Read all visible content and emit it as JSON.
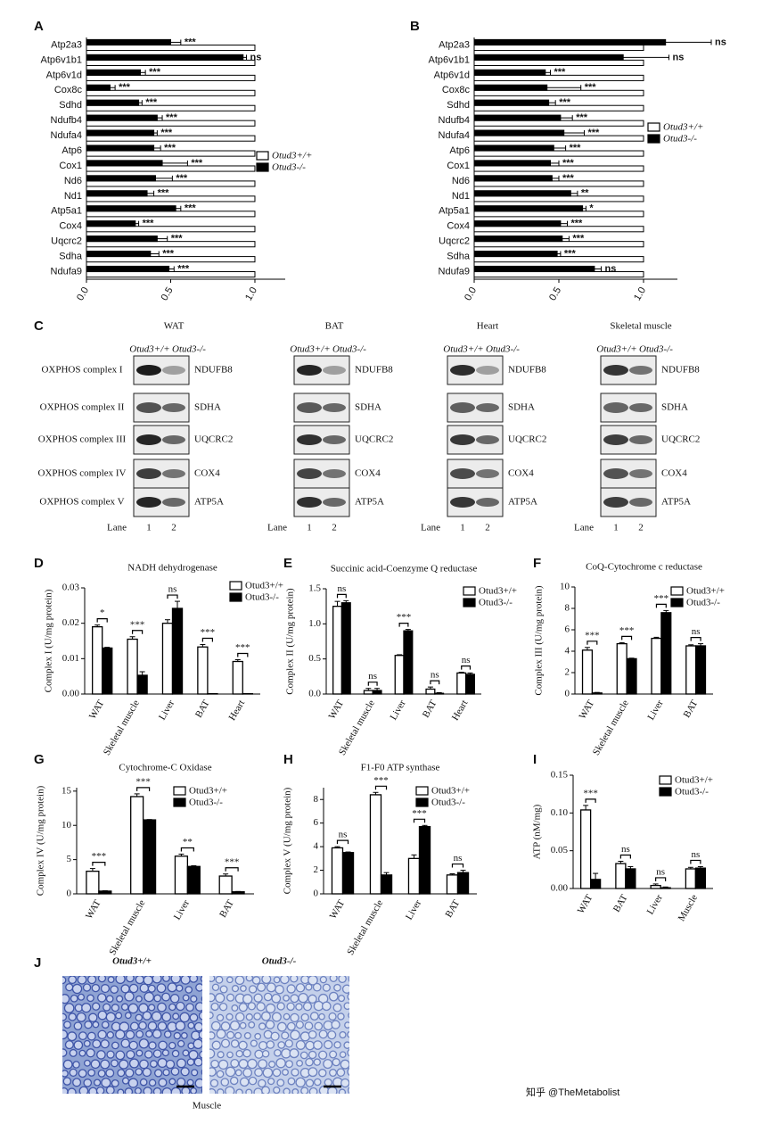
{
  "chart_data": [
    {
      "panel": "A",
      "type": "barh",
      "categories": [
        "Atp2a3",
        "Atp6v1b1",
        "Atp6v1d",
        "Cox8c",
        "Sdhd",
        "Ndufb4",
        "Ndufa4",
        "Atp6",
        "Cox1",
        "Nd6",
        "Nd1",
        "Atp5a1",
        "Cox4",
        "Uqcrc2",
        "Sdha",
        "Ndufa9"
      ],
      "series": [
        {
          "name": "Otud3+/+",
          "color": "#ffffff",
          "values": [
            1,
            1,
            1,
            1,
            1,
            1,
            1,
            1,
            1,
            1,
            1,
            1,
            1,
            1,
            1,
            1
          ]
        },
        {
          "name": "Otud3-/-",
          "color": "#000000",
          "values": [
            0.5,
            0.93,
            0.32,
            0.14,
            0.31,
            0.42,
            0.4,
            0.4,
            0.45,
            0.41,
            0.36,
            0.53,
            0.29,
            0.42,
            0.38,
            0.49
          ],
          "errors": [
            0.06,
            0.02,
            0.03,
            0.03,
            0.02,
            0.03,
            0.02,
            0.04,
            0.15,
            0.1,
            0.04,
            0.03,
            0.02,
            0.06,
            0.05,
            0.03
          ]
        }
      ],
      "annotations": [
        "***",
        "ns",
        "***",
        "***",
        "***",
        "***",
        "***",
        "***",
        "***",
        "***",
        "***",
        "***",
        "***",
        "***",
        "***",
        "***"
      ],
      "xlim": [
        0,
        1.18
      ],
      "xticks": [
        {
          "value": 0,
          "label": "0.0"
        },
        0.5,
        {
          "value": 1,
          "label": "1.0"
        }
      ]
    },
    {
      "panel": "B",
      "type": "barh",
      "categories": [
        "Atp2a3",
        "Atp6v1b1",
        "Atp6v1d",
        "Cox8c",
        "Sdhd",
        "Ndufb4",
        "Ndufa4",
        "Atp6",
        "Cox1",
        "Nd6",
        "Nd1",
        "Atp5a1",
        "Cox4",
        "Uqcrc2",
        "Sdha",
        "Ndufa9"
      ],
      "series": [
        {
          "name": "Otud3+/+",
          "color": "#ffffff",
          "values": [
            1,
            1,
            1,
            1,
            1,
            1,
            1,
            1,
            1,
            1,
            1,
            1,
            1,
            1,
            1,
            1
          ]
        },
        {
          "name": "Otud3-/-",
          "color": "#000000",
          "values": [
            1.13,
            0.88,
            0.42,
            0.43,
            0.44,
            0.51,
            0.53,
            0.47,
            0.45,
            0.46,
            0.57,
            0.64,
            0.51,
            0.52,
            0.49,
            0.71
          ],
          "errors": [
            0.27,
            0.27,
            0.03,
            0.2,
            0.04,
            0.07,
            0.12,
            0.07,
            0.05,
            0.04,
            0.04,
            0.02,
            0.04,
            0.04,
            0.02,
            0.04
          ]
        }
      ],
      "annotations": [
        "ns",
        "ns",
        "***",
        "***",
        "***",
        "***",
        "***",
        "***",
        "***",
        "***",
        "**",
        "*",
        "***",
        "***",
        "***",
        "ns"
      ],
      "xlim": [
        0,
        1.2
      ],
      "xticks": [
        {
          "value": 0,
          "label": "0.0"
        },
        0.5,
        {
          "value": 1,
          "label": "1.0"
        }
      ]
    },
    {
      "panel": "D",
      "type": "bar",
      "title": "NADH dehydrogenase",
      "ylabel": "Complex I  (U/mg protein)",
      "categories": [
        "WAT",
        "Skeletal muscle",
        "Liver",
        "BAT",
        "Heart"
      ],
      "series": [
        {
          "name": "Otud3+/+",
          "color": "#ffffff",
          "values": [
            0.019,
            0.0155,
            0.02,
            0.0133,
            0.0092
          ],
          "errors": [
            0.0005,
            0.0007,
            0.001,
            0.0007,
            0.0005
          ]
        },
        {
          "name": "Otud3-/-",
          "color": "#000000",
          "values": [
            0.013,
            0.0053,
            0.0242,
            0.0001,
            0.0001
          ],
          "errors": [
            0.0002,
            0.001,
            0.002,
            0,
            0
          ]
        }
      ],
      "annotations": [
        "*",
        "***",
        "ns",
        "***",
        "***"
      ],
      "ylim": [
        0,
        0.03
      ],
      "yticks": [
        {
          "value": 0,
          "label": "0.00"
        },
        0.01,
        0.02,
        0.03
      ]
    },
    {
      "panel": "E",
      "type": "bar",
      "title": "Succinic acid-Coenzyme Q reductase",
      "ylabel": "Complex II  (U/mg protein)",
      "categories": [
        "WAT",
        "Skeletal muscle",
        "Liver",
        "BAT",
        "Heart"
      ],
      "series": [
        {
          "name": "Otud3+/+",
          "color": "#ffffff",
          "values": [
            1.25,
            0.05,
            0.55,
            0.07,
            0.3
          ],
          "errors": [
            0.07,
            0.03,
            0.01,
            0.03,
            0.01
          ]
        },
        {
          "name": "Otud3-/-",
          "color": "#000000",
          "values": [
            1.3,
            0.05,
            0.9,
            0.01,
            0.28
          ],
          "errors": [
            0.03,
            0.03,
            0.02,
            0.01,
            0.02
          ]
        }
      ],
      "annotations": [
        "ns",
        "ns",
        "***",
        "ns",
        "ns"
      ],
      "ylim": [
        0,
        1.5
      ],
      "yticks": [
        {
          "value": 0,
          "label": "0.0"
        },
        0.5,
        {
          "value": 1,
          "label": "1.0"
        },
        1.5
      ]
    },
    {
      "panel": "F",
      "type": "bar",
      "title": "CoQ-Cytochrome c reductase",
      "ylabel": "Complex III (U/mg protein)",
      "categories": [
        "WAT",
        "Skeletal muscle",
        "Liver",
        "BAT"
      ],
      "series": [
        {
          "name": "Otud3+/+",
          "color": "#ffffff",
          "values": [
            4.1,
            4.7,
            5.2,
            4.5
          ],
          "errors": [
            0.25,
            0.1,
            0.1,
            0.1
          ]
        },
        {
          "name": "Otud3-/-",
          "color": "#000000",
          "values": [
            0.1,
            3.3,
            7.6,
            4.5
          ],
          "errors": [
            0.05,
            0.05,
            0.2,
            0.2
          ]
        }
      ],
      "annotations": [
        "***",
        "***",
        "***",
        "ns"
      ],
      "ylim": [
        0,
        10
      ],
      "yticks": [
        0,
        2,
        4,
        6,
        8,
        10
      ]
    },
    {
      "panel": "G",
      "type": "bar",
      "title": "Cytochrome-C Oxidase",
      "ylabel": "Complex  IV (U/mg protein)",
      "categories": [
        "WAT",
        "Skeletal muscle",
        "Liver",
        "BAT"
      ],
      "series": [
        {
          "name": "Otud3+/+",
          "color": "#ffffff",
          "values": [
            3.3,
            14.2,
            5.5,
            2.6
          ],
          "errors": [
            0.4,
            0.4,
            0.3,
            0.3
          ]
        },
        {
          "name": "Otud3-/-",
          "color": "#000000",
          "values": [
            0.4,
            10.8,
            4.0,
            0.3
          ],
          "errors": [
            0.05,
            0.05,
            0.1,
            0.05
          ]
        }
      ],
      "annotations": [
        "***",
        "***",
        "**",
        "***"
      ],
      "ylim": [
        0,
        15.5
      ],
      "yticks": [
        0,
        5,
        10,
        15
      ]
    },
    {
      "panel": "H",
      "type": "bar",
      "title": "F1-F0 ATP synthase",
      "ylabel": "Complex  V (U/mg protein)",
      "categories": [
        "WAT",
        "Skeletal muscle",
        "Liver",
        "BAT"
      ],
      "series": [
        {
          "name": "Otud3+/+",
          "color": "#ffffff",
          "values": [
            3.9,
            8.4,
            3.0,
            1.6
          ],
          "errors": [
            0.1,
            0.2,
            0.3,
            0.1
          ]
        },
        {
          "name": "Otud3-/-",
          "color": "#000000",
          "values": [
            3.5,
            1.6,
            5.7,
            1.8
          ],
          "errors": [
            0.05,
            0.2,
            0.1,
            0.2
          ]
        }
      ],
      "annotations": [
        "ns",
        "***",
        "***",
        "ns"
      ],
      "ylim": [
        0,
        9
      ],
      "yticks": [
        0,
        2,
        4,
        6,
        8
      ]
    },
    {
      "panel": "I",
      "type": "bar",
      "ylabel": "ATP (nM/mg)",
      "categories": [
        "WAT",
        "BAT",
        "Liver",
        "Muscle"
      ],
      "series": [
        {
          "name": "Otud3+/+",
          "color": "#ffffff",
          "values": [
            0.104,
            0.033,
            0.004,
            0.026
          ],
          "errors": [
            0.006,
            0.003,
            0.002,
            0.002
          ]
        },
        {
          "name": "Otud3-/-",
          "color": "#000000",
          "values": [
            0.012,
            0.026,
            0.001,
            0.027
          ],
          "errors": [
            0.008,
            0.003,
            0.001,
            0.002
          ]
        }
      ],
      "annotations": [
        "***",
        "ns",
        "ns",
        "ns"
      ],
      "ylim": [
        0,
        0.15
      ],
      "yticks": [
        {
          "value": 0,
          "label": "0.00"
        },
        0.05,
        {
          "value": 0.1,
          "label": "0.10"
        },
        0.15
      ]
    }
  ],
  "blots": {
    "panel": "C",
    "complexes": [
      "OXPHOS complex I",
      "OXPHOS complex II",
      "OXPHOS complex III",
      "OXPHOS complex IV",
      "OXPHOS complex V"
    ],
    "genotypes": [
      "Otud3+/+",
      "Otud3-/-"
    ],
    "lane_label": "Lane",
    "lanes": [
      1,
      2
    ],
    "tissues": [
      {
        "name": "WAT",
        "proteins": [
          "NDUFB8",
          "SDHA",
          "UQCRC2",
          "COX4",
          "ATP5A"
        ]
      },
      {
        "name": "BAT",
        "proteins": [
          "NDUFB8",
          "SDHA",
          "UQCRC2",
          "COX4",
          "ATP5A"
        ]
      },
      {
        "name": "Heart",
        "proteins": [
          "NDUFB8",
          "SDHA",
          "UQCRC2",
          "COX4",
          "ATP5A"
        ]
      },
      {
        "name": "Skeletal muscle",
        "proteins": [
          "NDUFB8",
          "SDHA",
          "UQCRC2",
          "COX4",
          "ATP5A"
        ]
      }
    ]
  },
  "micrographs": {
    "panel": "J",
    "labels": [
      "Otud3+/+",
      "Otud3-/-"
    ],
    "caption": "Muscle"
  },
  "watermark": "知乎 @TheMetabolist"
}
